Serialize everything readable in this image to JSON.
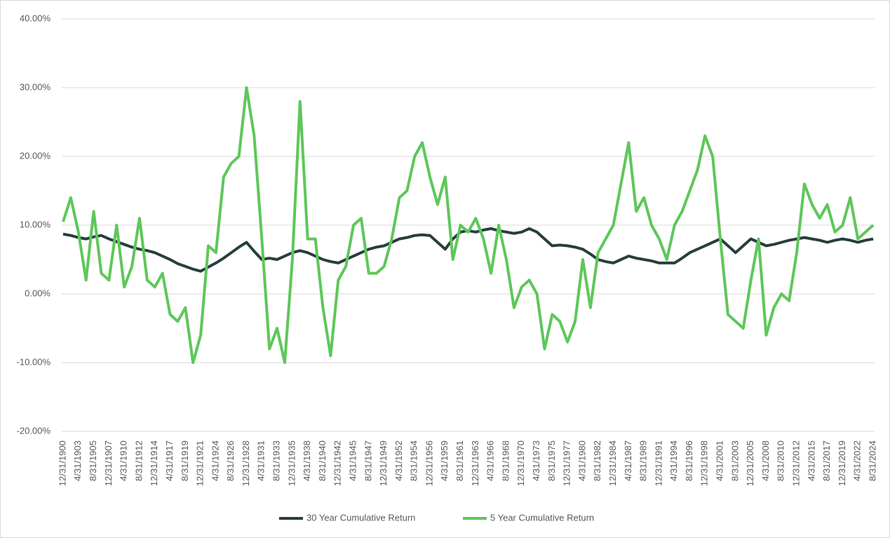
{
  "chart_data": {
    "type": "line",
    "categories": [
      "12/31/1900",
      null,
      "4/31/1903",
      null,
      "8/31/1905",
      null,
      "12/31/1907",
      null,
      "4/31/1910",
      null,
      "8/31/1912",
      null,
      "12/31/1914",
      null,
      "4/31/1917",
      null,
      "8/31/1919",
      null,
      "12/31/1921",
      null,
      "4/31/1924",
      null,
      "8/31/1926",
      null,
      "12/31/1928",
      null,
      "4/31/1931",
      null,
      "8/31/1933",
      null,
      "12/31/1935",
      null,
      "4/31/1938",
      null,
      "8/31/1940",
      null,
      "12/31/1942",
      null,
      "4/31/1945",
      null,
      "8/31/1947",
      null,
      "12/31/1949",
      null,
      "4/31/1952",
      null,
      "8/31/1954",
      null,
      "12/31/1956",
      null,
      "4/31/1959",
      null,
      "8/31/1961",
      null,
      "12/31/1963",
      null,
      "4/31/1966",
      null,
      "8/31/1968",
      null,
      "12/31/1970",
      null,
      "4/31/1973",
      null,
      "8/31/1975",
      null,
      "12/31/1977",
      null,
      "4/31/1980",
      null,
      "8/31/1982",
      null,
      "12/31/1984",
      null,
      "4/31/1987",
      null,
      "8/31/1989",
      null,
      "12/31/1991",
      null,
      "4/31/1994",
      null,
      "8/31/1996",
      null,
      "12/31/1998",
      null,
      "4/31/2001",
      null,
      "8/31/2003",
      null,
      "12/31/2005",
      null,
      "4/31/2008",
      null,
      "8/31/2010",
      null,
      "12/31/2012",
      null,
      "4/31/2015",
      null,
      "8/31/2017",
      null,
      "12/31/2019",
      null,
      "4/31/2022",
      null,
      "8/31/2024"
    ],
    "series": [
      {
        "name": "30 Year Cumulative Return",
        "color": "#263f3d",
        "values": [
          8.7,
          8.5,
          8.2,
          8.0,
          8.3,
          8.5,
          8.0,
          7.6,
          7.2,
          6.8,
          6.5,
          6.3,
          6.0,
          5.5,
          5.0,
          4.4,
          4.0,
          3.6,
          3.3,
          3.9,
          4.5,
          5.2,
          6.0,
          6.8,
          7.5,
          6.2,
          5.0,
          5.2,
          5.0,
          5.5,
          6.0,
          6.3,
          6.0,
          5.5,
          5.0,
          4.7,
          4.5,
          5.0,
          5.5,
          6.0,
          6.5,
          6.8,
          7.0,
          7.5,
          8.0,
          8.2,
          8.5,
          8.6,
          8.5,
          7.5,
          6.5,
          8.0,
          9.0,
          9.2,
          9.0,
          9.3,
          9.5,
          9.2,
          9.0,
          8.8,
          9.0,
          9.5,
          9.0,
          8.0,
          7.0,
          7.1,
          7.0,
          6.8,
          6.5,
          5.8,
          5.0,
          4.7,
          4.5,
          5.0,
          5.5,
          5.2,
          5.0,
          4.8,
          4.5,
          4.5,
          4.5,
          5.2,
          6.0,
          6.5,
          7.0,
          7.5,
          8.0,
          7.0,
          6.0,
          7.0,
          8.0,
          7.5,
          7.0,
          7.2,
          7.5,
          7.8,
          8.0,
          8.2,
          8.0,
          7.8,
          7.5,
          7.8,
          8.0,
          7.8,
          7.5,
          7.8,
          8.0
        ]
      },
      {
        "name": "5 Year Cumulative Return",
        "color": "#5ec75a",
        "values": [
          10.5,
          14,
          9,
          2,
          12,
          3,
          2,
          10,
          1,
          4,
          11,
          2,
          1,
          3,
          -3,
          -4,
          -2,
          -10,
          -6,
          7,
          6,
          17,
          19,
          20,
          30,
          23,
          8,
          -8,
          -5,
          -10,
          5,
          28,
          8,
          8,
          -2,
          -9,
          2,
          4,
          10,
          11,
          3,
          3,
          4,
          8,
          14,
          15,
          20,
          22,
          17,
          13,
          17,
          5,
          10,
          9,
          11,
          8,
          3,
          10,
          5,
          -2,
          1,
          2,
          0,
          -8,
          -3,
          -4,
          -7,
          -4,
          5,
          -2,
          6,
          8,
          10,
          16,
          22,
          12,
          14,
          10,
          8,
          5,
          10,
          12,
          15,
          18,
          23,
          20,
          8,
          -3,
          -4,
          -5,
          2,
          8,
          -6,
          -2,
          0,
          -1,
          6,
          16,
          13,
          11,
          13,
          9,
          10,
          14,
          8,
          9,
          10
        ]
      }
    ],
    "ylim": [
      -20,
      40
    ],
    "yticks": [
      {
        "value": -20,
        "label": "-20.00%"
      },
      {
        "value": -10,
        "label": "-10.00%"
      },
      {
        "value": 0,
        "label": "0.00%"
      },
      {
        "value": 10,
        "label": "10.00%"
      },
      {
        "value": 20,
        "label": "20.00%"
      },
      {
        "value": 30,
        "label": "30.00%"
      },
      {
        "value": 40,
        "label": "40.00%"
      }
    ],
    "grid": true,
    "legend": "bottom"
  }
}
